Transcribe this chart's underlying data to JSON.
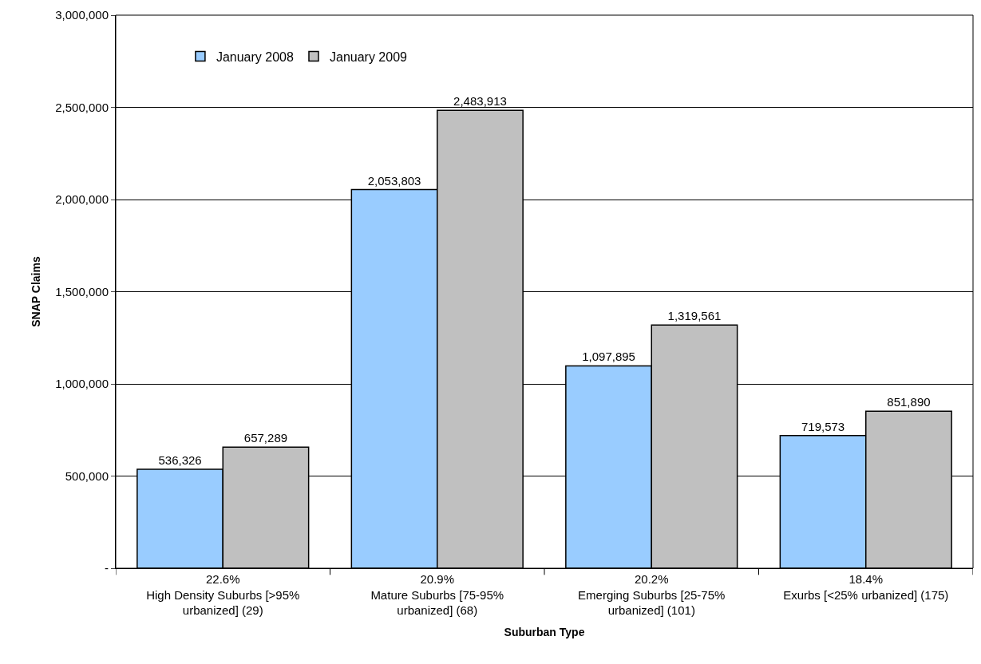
{
  "chart_data": {
    "type": "bar",
    "xlabel": "Suburban Type",
    "ylabel": "SNAP Claims",
    "categories": [
      "22.6%\nHigh Density Suburbs [>95%\nurbanized] (29)",
      "20.9%\nMature Suburbs [75-95%\nurbanized] (68)",
      "20.2%\nEmerging Suburbs [25-75%\nurbanized] (101)",
      "18.4%\nExurbs [<25% urbanized] (175)"
    ],
    "series": [
      {
        "name": "January 2008",
        "color": "#99ccff",
        "values": [
          536326,
          2053803,
          1097895,
          719573
        ],
        "value_labels": [
          "536,326",
          "2,053,803",
          "1,097,895",
          "719,573"
        ]
      },
      {
        "name": "January 2009",
        "color": "#c0c0c0",
        "values": [
          657289,
          2483913,
          1319561,
          851890
        ],
        "value_labels": [
          "657,289",
          "2,483,913",
          "1,319,561",
          "851,890"
        ]
      }
    ],
    "ylim": [
      0,
      3000000
    ],
    "yticks": [
      {
        "value": 0,
        "label": "-"
      },
      {
        "value": 500000,
        "label": "500,000"
      },
      {
        "value": 1000000,
        "label": "1,000,000"
      },
      {
        "value": 1500000,
        "label": "1,500,000"
      },
      {
        "value": 2000000,
        "label": "2,000,000"
      },
      {
        "value": 2500000,
        "label": "2,500,000"
      },
      {
        "value": 3000000,
        "label": "3,000,000"
      }
    ],
    "grid": "y",
    "legend": "top left"
  }
}
